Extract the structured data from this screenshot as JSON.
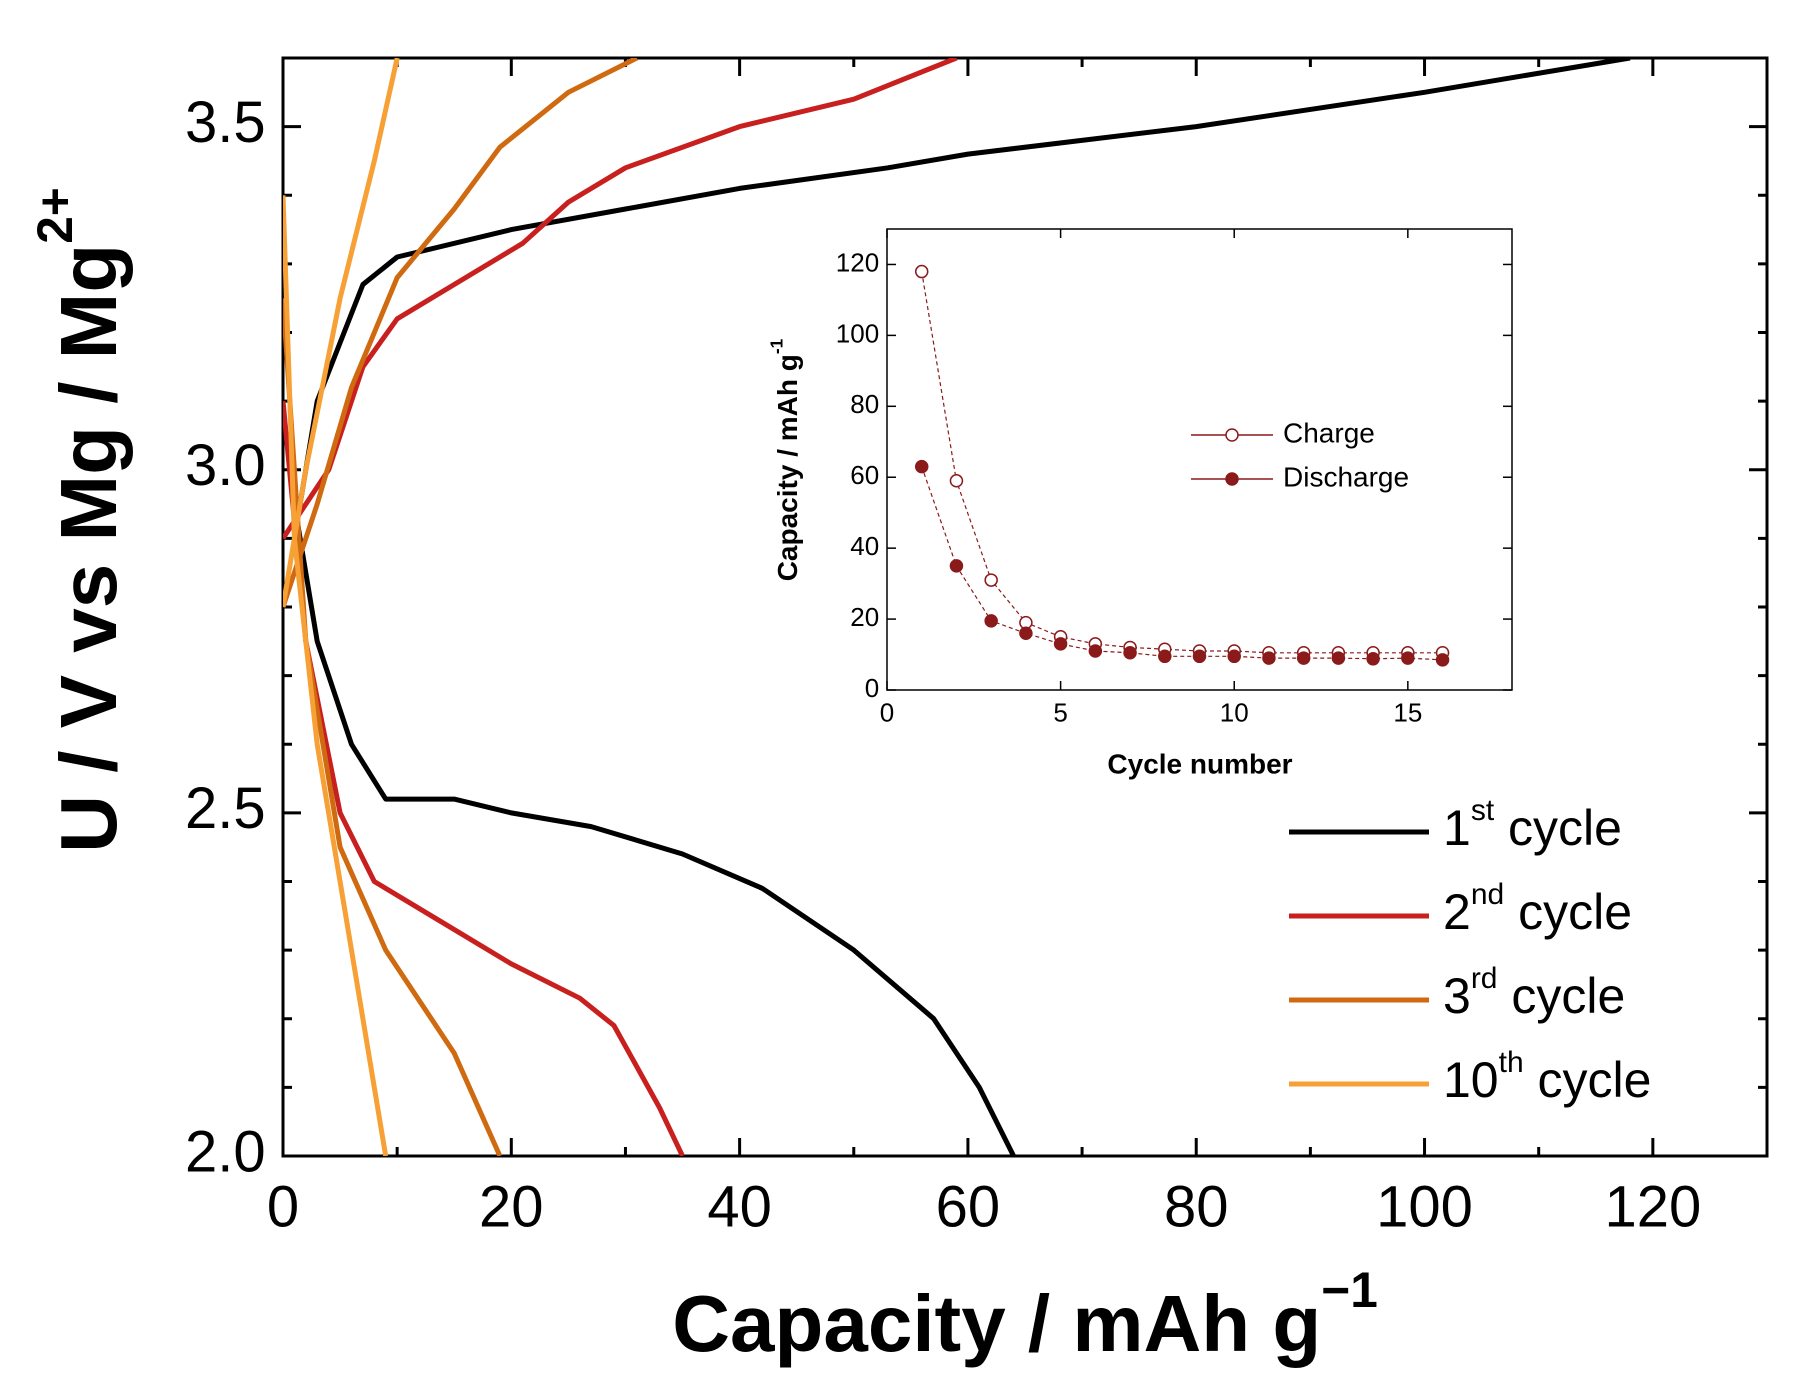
{
  "chart_data": [
    {
      "type": "line",
      "xlabel": [
        "Capacity / mAh g",
        "−1"
      ],
      "ylabel": [
        "U / V vs Mg / Mg",
        "2+"
      ],
      "xlim": [
        0,
        130
      ],
      "xticks": [
        0,
        20,
        40,
        60,
        80,
        100,
        120
      ],
      "xticks_minor": [
        10,
        30,
        50,
        70,
        90,
        110,
        130
      ],
      "ylim": [
        2.0,
        3.6
      ],
      "yticks": [
        {
          "value": 2,
          "label": "2.0"
        },
        2.5,
        {
          "value": 3,
          "label": "3.0"
        },
        3.5
      ],
      "yticks_minor": [
        2.1,
        2.2,
        2.3,
        2.4,
        2.6,
        2.7,
        2.8,
        2.9,
        3.1,
        3.2,
        3.3,
        3.4,
        3.6
      ],
      "legend": "lower right",
      "series": [
        {
          "name": "1st cycle",
          "color": "#000000",
          "x": [
            1,
            3,
            7,
            10,
            20,
            30,
            40,
            53,
            60,
            80,
            100,
            118,
            null,
            1,
            3,
            6,
            9,
            15,
            20,
            27,
            35,
            42,
            50,
            57,
            61,
            64
          ],
          "values": [
            2.9,
            3.1,
            3.27,
            3.31,
            3.35,
            3.38,
            3.41,
            3.44,
            3.46,
            3.5,
            3.55,
            3.6,
            null,
            2.95,
            2.75,
            2.6,
            2.52,
            2.52,
            2.5,
            2.48,
            2.44,
            2.39,
            2.3,
            2.2,
            2.1,
            2.0
          ]
        },
        {
          "name": "2nd cycle",
          "color": "#c8201e",
          "x": [
            0,
            4,
            7,
            10,
            15,
            21,
            25,
            30,
            40,
            50,
            59,
            null,
            0,
            2,
            5,
            8,
            14,
            20,
            26,
            29,
            33,
            35
          ],
          "values": [
            2.9,
            3.0,
            3.15,
            3.22,
            3.27,
            3.33,
            3.39,
            3.44,
            3.5,
            3.54,
            3.6,
            null,
            3.1,
            2.75,
            2.5,
            2.4,
            2.34,
            2.28,
            2.23,
            2.19,
            2.07,
            2.0
          ]
        },
        {
          "name": "3rd cycle",
          "color": "#d06a10",
          "x": [
            0,
            3,
            6,
            10,
            15,
            19,
            25,
            31,
            null,
            0,
            2,
            5,
            9,
            15,
            19
          ],
          "values": [
            2.8,
            2.95,
            3.12,
            3.28,
            3.38,
            3.47,
            3.55,
            3.6,
            null,
            3.25,
            2.75,
            2.45,
            2.3,
            2.15,
            2.0
          ]
        },
        {
          "name": "10th cycle",
          "color": "#f7a035",
          "x": [
            0,
            2,
            5,
            8,
            10,
            null,
            0,
            1,
            3,
            6,
            9
          ],
          "values": [
            2.8,
            3.0,
            3.25,
            3.45,
            3.6,
            null,
            3.4,
            2.9,
            2.6,
            2.3,
            2.0
          ]
        }
      ]
    },
    {
      "type": "line",
      "xlabel": "Cycle number",
      "ylabel": [
        "Capacity / mAh g",
        "-1"
      ],
      "xlim": [
        0,
        18
      ],
      "xticks": [
        0,
        5,
        10,
        15
      ],
      "ylim": [
        0,
        130
      ],
      "yticks": [
        0,
        20,
        40,
        60,
        80,
        100,
        120
      ],
      "legend": "upper center",
      "series": [
        {
          "name": "Charge",
          "color": "#8b1a1a",
          "marker": "open",
          "x": [
            1,
            2,
            3,
            4,
            5,
            6,
            7,
            8,
            9,
            10,
            11,
            12,
            13,
            14,
            15,
            16
          ],
          "values": [
            118,
            59,
            31,
            19,
            15,
            13,
            12,
            11.5,
            11,
            11,
            10.5,
            10.5,
            10.5,
            10.5,
            10.5,
            10.5
          ]
        },
        {
          "name": "Discharge",
          "color": "#8b1a1a",
          "marker": "filled",
          "x": [
            1,
            2,
            3,
            4,
            5,
            6,
            7,
            8,
            9,
            10,
            11,
            12,
            13,
            14,
            15,
            16
          ],
          "values": [
            63,
            35,
            19.5,
            16,
            13,
            11,
            10.5,
            9.5,
            9.5,
            9.5,
            9,
            9,
            9,
            8.8,
            9,
            8.5
          ]
        }
      ]
    }
  ]
}
